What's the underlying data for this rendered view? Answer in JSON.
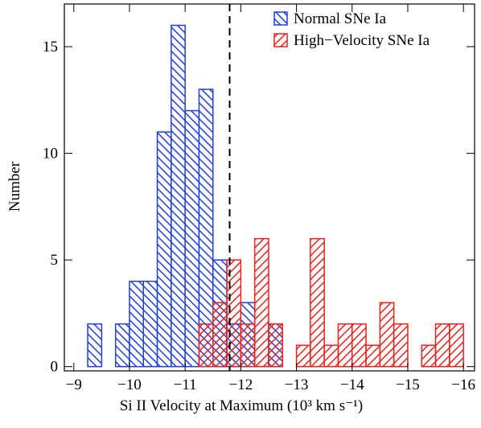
{
  "chart_data": {
    "type": "histogram",
    "xlabel": "Si II Velocity at Maximum (10³ km s⁻¹)",
    "ylabel": "Number",
    "xlim": [
      -8.83,
      -16.2
    ],
    "ylim": [
      -0.2,
      17
    ],
    "xticks": [
      {
        "value": -9,
        "label": "−9"
      },
      {
        "value": -10,
        "label": "−10"
      },
      {
        "value": -11,
        "label": "−11"
      },
      {
        "value": -12,
        "label": "−12"
      },
      {
        "value": -13,
        "label": "−13"
      },
      {
        "value": -14,
        "label": "−14"
      },
      {
        "value": -15,
        "label": "−15"
      },
      {
        "value": -16,
        "label": "−16"
      }
    ],
    "yticks": [
      0,
      5,
      10,
      15
    ],
    "vline": -11.8,
    "legend": "upper right",
    "series": [
      {
        "name": "Normal SNe Ia",
        "color": "#1f3fe0",
        "hatch": "\\",
        "bins": [
          -9.25,
          -9.5,
          -9.75,
          -10,
          -10.25,
          -10.5,
          -10.75,
          -11,
          -11.25,
          -11.5,
          -11.75,
          -12,
          -12.25,
          -12.5,
          -12.75
        ],
        "values": [
          2,
          0,
          2,
          4,
          4,
          11,
          16,
          12,
          13,
          5,
          2,
          3,
          0,
          2
        ]
      },
      {
        "name": "High−Velocity SNe Ia",
        "color": "#e8231c",
        "hatch": "/",
        "bins": [
          -11.25,
          -11.5,
          -11.75,
          -12,
          -12.25,
          -12.5,
          -12.75,
          -13,
          -13.25,
          -13.5,
          -13.75,
          -14,
          -14.25,
          -14.5,
          -14.75,
          -15,
          -15.25,
          -15.5,
          -15.75,
          -16
        ],
        "values": [
          2,
          3,
          5,
          2,
          6,
          2,
          0,
          1,
          6,
          1,
          2,
          2,
          1,
          3,
          2,
          0,
          1,
          2,
          2
        ]
      }
    ]
  }
}
